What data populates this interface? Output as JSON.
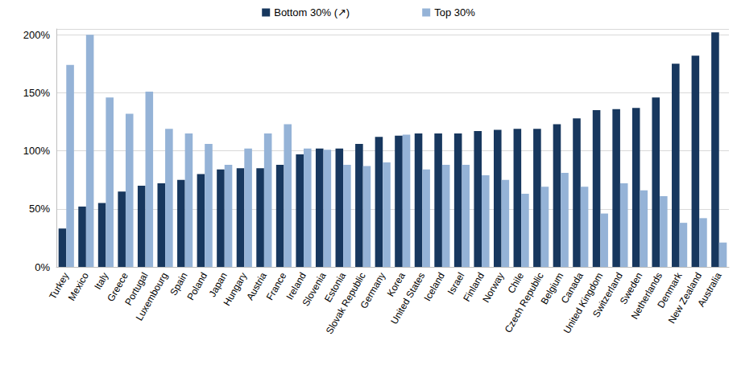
{
  "chart_data": {
    "type": "bar",
    "categories": [
      "Turkey",
      "Mexico",
      "Italy",
      "Greece",
      "Portugal",
      "Luxembourg",
      "Spain",
      "Poland",
      "Japan",
      "Hungary",
      "Austria",
      "France",
      "Ireland",
      "Slovenia",
      "Estonia",
      "Slovak Republic",
      "Germany",
      "Korea",
      "United States",
      "Iceland",
      "Israel",
      "Finland",
      "Norway",
      "Chile",
      "Czech Republic",
      "Belgium",
      "Canada",
      "United Kingdom",
      "Switzerland",
      "Sweden",
      "Netherlands",
      "Denmark",
      "New Zealand",
      "Australia"
    ],
    "series": [
      {
        "name": "Bottom 30% (↗)",
        "color": "#17375e",
        "values": [
          33,
          52,
          55,
          65,
          70,
          72,
          75,
          80,
          84,
          85,
          85,
          88,
          97,
          102,
          102,
          106,
          112,
          113,
          115,
          115,
          115,
          117,
          118,
          119,
          119,
          123,
          128,
          135,
          136,
          137,
          146,
          175,
          182,
          202
        ]
      },
      {
        "name": "Top 30%",
        "color": "#95b3d7",
        "values": [
          174,
          200,
          146,
          132,
          151,
          119,
          115,
          106,
          88,
          102,
          115,
          123,
          102,
          101,
          88,
          87,
          90,
          114,
          84,
          88,
          88,
          79,
          75,
          63,
          69,
          81,
          69,
          46,
          72,
          66,
          61,
          38,
          42,
          21
        ]
      }
    ],
    "ylim": [
      0,
      205
    ],
    "yticks": [
      {
        "value": 0,
        "label": "0%"
      },
      {
        "value": 50,
        "label": "50%"
      },
      {
        "value": 100,
        "label": "100%"
      },
      {
        "value": 150,
        "label": "150%"
      },
      {
        "value": 200,
        "label": "200%"
      }
    ],
    "grid": true,
    "legend": "top"
  }
}
